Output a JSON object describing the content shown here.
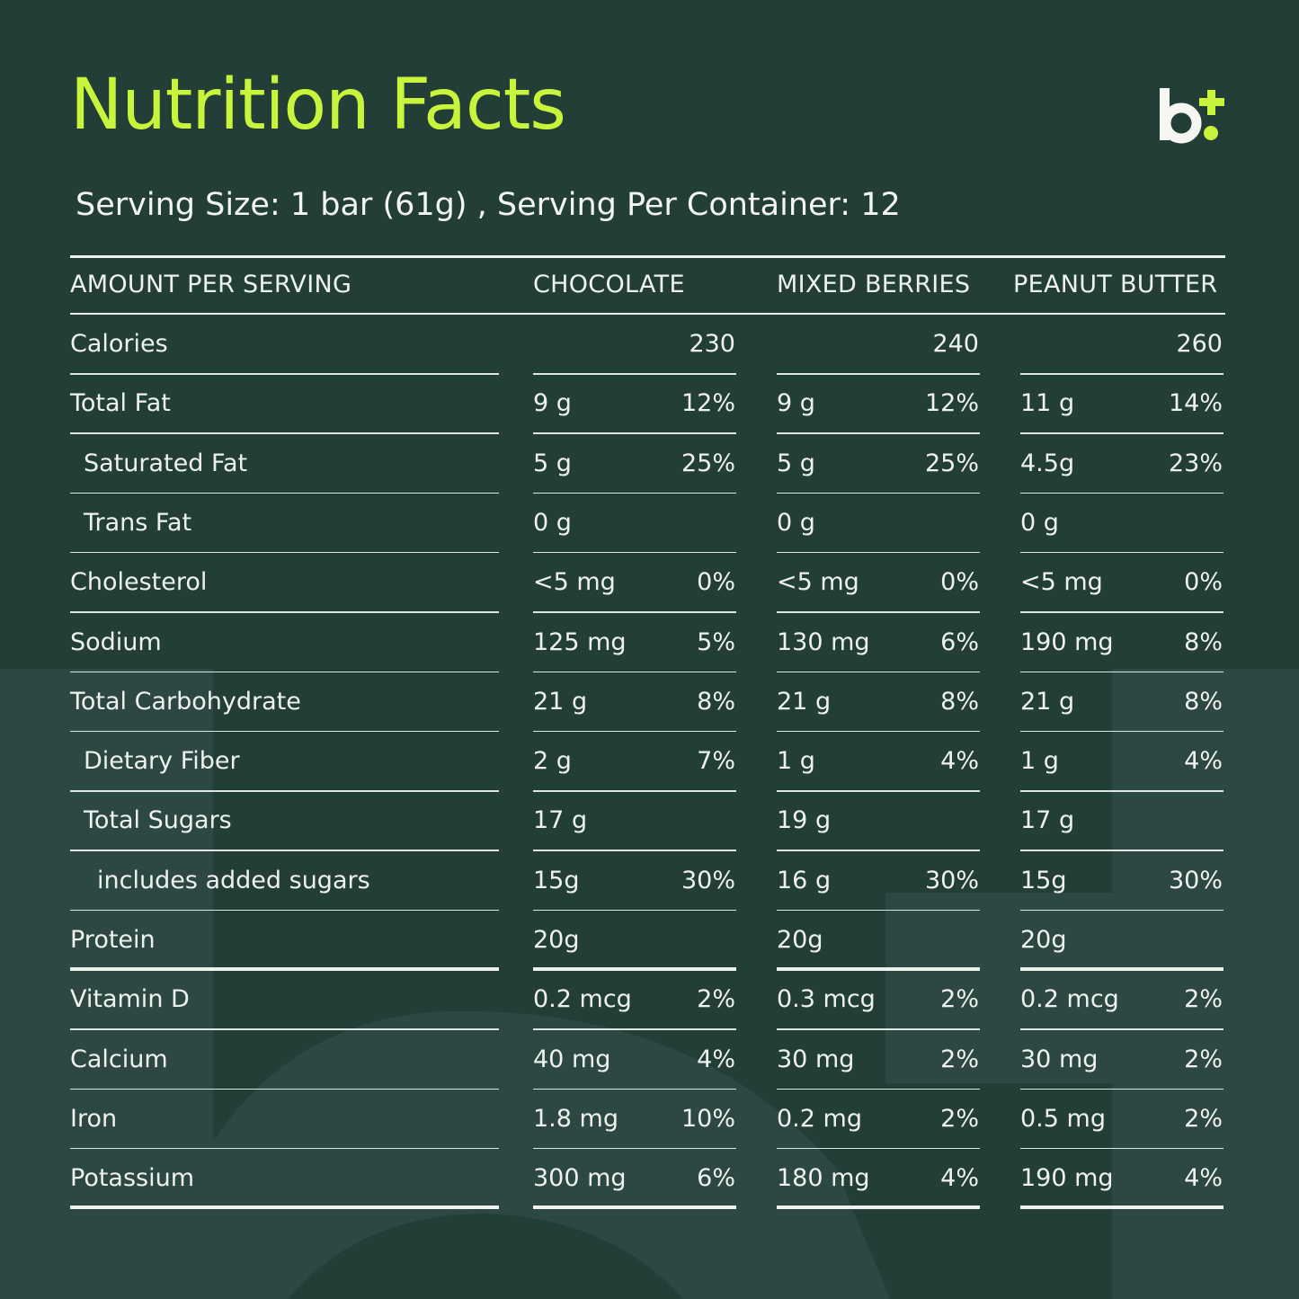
{
  "title": "Nutrition Facts",
  "logo": {
    "text": "b+",
    "accent": "#c8f53c"
  },
  "serving": "Serving Size: 1 bar (61g) , Serving Per Container: 12",
  "colors": {
    "background": "#233e37",
    "accent": "#c8f53c",
    "text": "#eef2ee"
  },
  "headers": [
    "AMOUNT PER SERVING",
    "CHOCOLATE",
    "MIXED BERRIES",
    "PEANUT BUTTER"
  ],
  "rows": [
    {
      "label": "Calories",
      "indent": 0,
      "vals": [
        [
          "",
          "230"
        ],
        [
          "",
          "240"
        ],
        [
          "",
          "260"
        ]
      ]
    },
    {
      "label": "Total Fat",
      "indent": 0,
      "vals": [
        [
          "9 g",
          "12%"
        ],
        [
          "9 g",
          "12%"
        ],
        [
          "11 g",
          "14%"
        ]
      ]
    },
    {
      "label": "Saturated Fat",
      "indent": 1,
      "vals": [
        [
          "5 g",
          "25%"
        ],
        [
          "5 g",
          "25%"
        ],
        [
          "4.5g",
          "23%"
        ]
      ]
    },
    {
      "label": "Trans Fat",
      "indent": 1,
      "vals": [
        [
          "0 g",
          ""
        ],
        [
          "0 g",
          ""
        ],
        [
          "0 g",
          ""
        ]
      ]
    },
    {
      "label": "Cholesterol",
      "indent": 0,
      "vals": [
        [
          "<5 mg",
          "0%"
        ],
        [
          "<5 mg",
          "0%"
        ],
        [
          "<5 mg",
          "0%"
        ]
      ]
    },
    {
      "label": "Sodium",
      "indent": 0,
      "vals": [
        [
          "125 mg",
          "5%"
        ],
        [
          "130 mg",
          "6%"
        ],
        [
          "190 mg",
          "8%"
        ]
      ]
    },
    {
      "label": "Total Carbohydrate",
      "indent": 0,
      "vals": [
        [
          "21 g",
          "8%"
        ],
        [
          "21 g",
          "8%"
        ],
        [
          "21 g",
          "8%"
        ]
      ]
    },
    {
      "label": "Dietary Fiber",
      "indent": 1,
      "vals": [
        [
          "2 g",
          "7%"
        ],
        [
          "1 g",
          "4%"
        ],
        [
          "1 g",
          "4%"
        ]
      ]
    },
    {
      "label": "Total Sugars",
      "indent": 1,
      "vals": [
        [
          "17 g",
          ""
        ],
        [
          "19 g",
          ""
        ],
        [
          "17 g",
          ""
        ]
      ]
    },
    {
      "label": "includes added sugars",
      "indent": 2,
      "vals": [
        [
          "15g",
          "30%"
        ],
        [
          "16 g",
          "30%"
        ],
        [
          "15g",
          "30%"
        ]
      ]
    },
    {
      "label": "Protein",
      "indent": 0,
      "thick": true,
      "vals": [
        [
          "20g",
          ""
        ],
        [
          "20g",
          ""
        ],
        [
          "20g",
          ""
        ]
      ]
    },
    {
      "label": "Vitamin D",
      "indent": 0,
      "vals": [
        [
          "0.2 mcg",
          "2%"
        ],
        [
          "0.3 mcg",
          "2%"
        ],
        [
          "0.2 mcg",
          "2%"
        ]
      ]
    },
    {
      "label": "Calcium",
      "indent": 0,
      "vals": [
        [
          "40 mg",
          "4%"
        ],
        [
          "30 mg",
          "2%"
        ],
        [
          "30 mg",
          "2%"
        ]
      ]
    },
    {
      "label": "Iron",
      "indent": 0,
      "vals": [
        [
          "1.8 mg",
          "10%"
        ],
        [
          "0.2 mg",
          "2%"
        ],
        [
          "0.5 mg",
          "2%"
        ]
      ]
    },
    {
      "label": "Potassium",
      "indent": 0,
      "thick": true,
      "vals": [
        [
          "300 mg",
          "6%"
        ],
        [
          "180 mg",
          "4%"
        ],
        [
          "190 mg",
          "4%"
        ]
      ]
    }
  ]
}
